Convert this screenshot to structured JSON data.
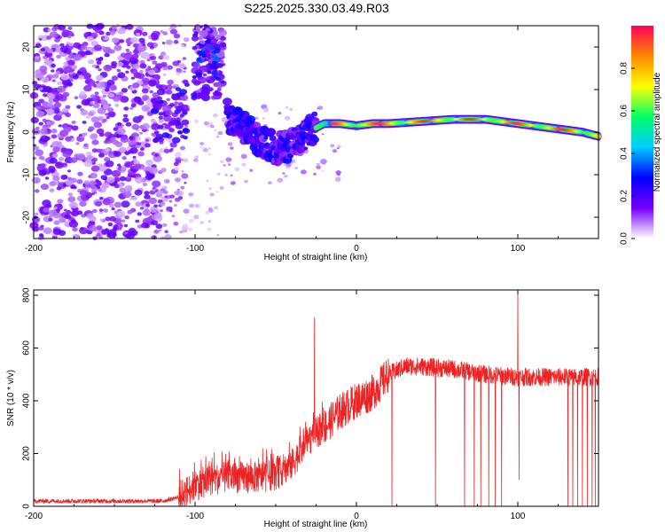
{
  "title": "S225.2025.330.03.49.R03",
  "chart_data": [
    {
      "type": "heatmap",
      "xlabel": "Height of straight line (km)",
      "ylabel": "Frequency (Hz)",
      "xlim": [
        -200,
        150
      ],
      "ylim": [
        -25,
        25
      ],
      "xticks": [
        -200,
        -100,
        0,
        100
      ],
      "yticks": [
        -20,
        -10,
        0,
        10,
        20
      ],
      "colorbar": {
        "label": "Normalized spectral amplitude",
        "range": [
          0,
          1
        ],
        "ticks": [
          "0.0",
          "0.2",
          "0.4",
          "0.6",
          "0.8"
        ],
        "colors": [
          "#ffffff",
          "#7700ff",
          "#0000ff",
          "#00ccff",
          "#00ff66",
          "#ffff00",
          "#ff8800",
          "#ff0055"
        ]
      },
      "ridge": {
        "x": [
          -80,
          -70,
          -60,
          -50,
          -40,
          -30,
          -20,
          -10,
          0,
          10,
          20,
          40,
          60,
          80,
          100,
          120,
          140,
          150
        ],
        "y": [
          4,
          1,
          -2,
          -4,
          -3,
          0,
          2,
          2,
          1.5,
          2,
          2,
          2.5,
          3,
          3,
          2,
          1,
          0,
          -1
        ]
      }
    },
    {
      "type": "line",
      "xlabel": "Height of straight line (km)",
      "ylabel": "SNR (10 * v/v)",
      "xlim": [
        -200,
        150
      ],
      "ylim": [
        0,
        820
      ],
      "xticks": [
        -200,
        -100,
        0,
        100
      ],
      "yticks": [
        0,
        200,
        400,
        600,
        800
      ],
      "color": "#ee2222",
      "trend": {
        "x": [
          -200,
          -150,
          -120,
          -110,
          -100,
          -90,
          -80,
          -70,
          -60,
          -50,
          -40,
          -30,
          -20,
          -10,
          0,
          10,
          20,
          30,
          40,
          60,
          80,
          100,
          120,
          140,
          150
        ],
        "y": [
          20,
          20,
          20,
          35,
          80,
          100,
          110,
          110,
          110,
          120,
          160,
          250,
          300,
          360,
          400,
          430,
          500,
          530,
          530,
          520,
          500,
          490,
          490,
          490,
          490
        ]
      },
      "spikes": [
        {
          "x": -26,
          "y": 715
        },
        {
          "x": 100,
          "y": 820
        },
        {
          "x": 100.8,
          "y": 100
        }
      ],
      "dropouts": [
        22,
        49,
        67,
        73,
        77,
        82,
        86,
        90,
        131,
        134,
        137,
        140,
        143,
        146,
        148
      ]
    }
  ]
}
